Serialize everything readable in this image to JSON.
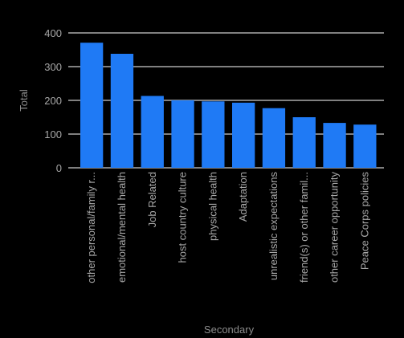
{
  "chart_data": {
    "type": "bar",
    "categories": [
      "other personal/family r...",
      "emotional/mental health",
      "Job Related",
      "host country culture",
      "physical health",
      "Adaptation",
      "unrealistic expectations",
      "friend(s) or other famil...",
      "other career opportunity",
      "Peace Corps policies"
    ],
    "values": [
      371,
      338,
      213,
      200,
      197,
      193,
      177,
      150,
      133,
      128
    ],
    "xlabel": "Secondary",
    "ylabel": "Total",
    "ylim": [
      0,
      400
    ],
    "yticks": [
      0,
      100,
      200,
      300,
      400
    ],
    "grid": true,
    "legend": "none",
    "colors": {
      "bar": "#1f7af5",
      "grid": "#ffffff",
      "background": "#000000",
      "tick_text": "#a8a8a8",
      "axis_title": "#8c8c8c"
    }
  }
}
